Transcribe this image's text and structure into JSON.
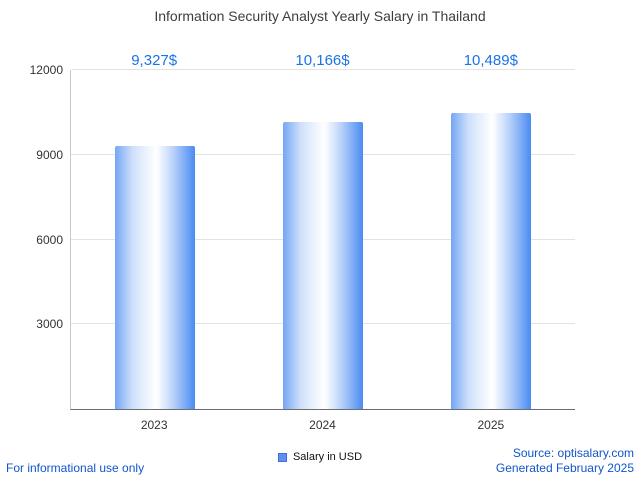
{
  "chart_data": {
    "type": "bar",
    "title": "Information Security Analyst Yearly Salary in Thailand",
    "categories": [
      "2023",
      "2024",
      "2025"
    ],
    "values": [
      9327,
      10166,
      10489
    ],
    "value_labels": [
      "9,327$",
      "10,166$",
      "10,489$"
    ],
    "series_name": "Salary in USD",
    "ylim": [
      0,
      12000
    ],
    "yticks": [
      3000,
      6000,
      9000,
      12000
    ],
    "grid": true,
    "legend_position": "bottom",
    "bar_gradient": [
      "#74a6f4",
      "#ffffff",
      "#4a8bf2"
    ],
    "value_label_color": "#1a73e8"
  },
  "legend": {
    "label": "Salary in USD",
    "marker_color": "#638df2"
  },
  "footer": {
    "left": "For informational use only",
    "source": "Source: optisalary.com",
    "generated": "Generated February 2025"
  }
}
